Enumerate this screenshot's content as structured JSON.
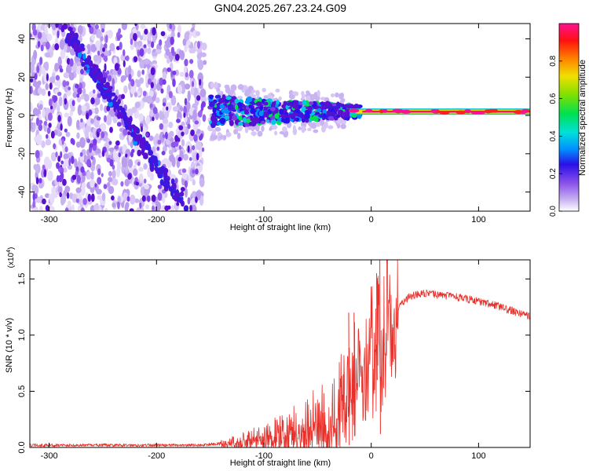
{
  "title": "GN04.2025.267.23.24.G09",
  "colors": {
    "snr_line": "#e8302a",
    "track_dark": "#5a10d0",
    "scatter_light": "#c9b4f2",
    "axis": "#000000"
  },
  "chart_data": [
    {
      "type": "heatmap",
      "xlabel": "Height of straight line (km)",
      "ylabel": "Frequency (Hz)",
      "xlim": [
        -318,
        148
      ],
      "ylim": [
        -50,
        48
      ],
      "xticks": [
        -300,
        -200,
        -100,
        0,
        100
      ],
      "xtick_labels": [
        "-300",
        "-200",
        "-100",
        "0",
        "100"
      ],
      "yticks": [
        -40,
        -20,
        0,
        20,
        40
      ],
      "ytick_labels": [
        "-40",
        "-20",
        "0",
        "20",
        "40"
      ],
      "colorbar": {
        "label": "Normalized spectral amplitude",
        "range": [
          0,
          1
        ],
        "ticks": [
          0.0,
          0.2,
          0.4,
          0.6,
          0.8
        ],
        "tick_labels": [
          "0.0",
          "0.2",
          "0.4",
          "0.6",
          "0.8"
        ]
      },
      "features": [
        {
          "name": "diagonal-track",
          "x": [
            -285,
            -175
          ],
          "y": [
            45,
            -47
          ]
        },
        {
          "name": "main-track",
          "x": [
            -150,
            148
          ],
          "y": [
            2,
            2
          ]
        },
        {
          "name": "noise-field",
          "x": [
            -318,
            -155
          ],
          "y": [
            -50,
            48
          ]
        }
      ]
    },
    {
      "type": "line",
      "xlabel": "Height of straight line (km)",
      "ylabel": "SNR (10 * v/v)",
      "scale_label": "(x10",
      "scale_exponent": "4",
      "scale_close": ")",
      "xlim": [
        -318,
        148
      ],
      "ylim": [
        0,
        1.67
      ],
      "xticks": [
        -300,
        -200,
        -100,
        0,
        100
      ],
      "xtick_labels": [
        "-300",
        "-200",
        "-100",
        "0",
        "100"
      ],
      "yticks": [
        0,
        0.5,
        1.0,
        1.5
      ],
      "ytick_labels": [
        "0.0",
        "0.5",
        "1.0",
        "1.5"
      ],
      "series": [
        {
          "name": "SNR",
          "x": [
            -318,
            -250,
            -200,
            -160,
            -140,
            -120,
            -100,
            -80,
            -60,
            -40,
            -30,
            -25,
            -20,
            -15,
            -10,
            -5,
            0,
            5,
            10,
            15,
            20,
            30,
            35,
            40,
            50,
            60,
            70,
            80,
            90,
            100,
            110,
            120,
            130,
            140,
            148
          ],
          "values": [
            0.02,
            0.02,
            0.02,
            0.02,
            0.04,
            0.07,
            0.12,
            0.17,
            0.24,
            0.32,
            0.45,
            0.55,
            0.62,
            0.75,
            0.85,
            0.92,
            1.0,
            1.05,
            1.1,
            1.15,
            1.2,
            1.3,
            1.34,
            1.36,
            1.37,
            1.36,
            1.35,
            1.34,
            1.32,
            1.3,
            1.28,
            1.25,
            1.22,
            1.19,
            1.17
          ]
        }
      ],
      "spikes": [
        {
          "x": -21,
          "values": [
            1.2,
            0.02
          ]
        },
        {
          "x": -16,
          "values": [
            1.2,
            0.1
          ]
        },
        {
          "x": 5,
          "values": [
            1.55,
            0.6
          ]
        },
        {
          "x": 8,
          "values": [
            1.67,
            0.12
          ]
        }
      ]
    }
  ]
}
